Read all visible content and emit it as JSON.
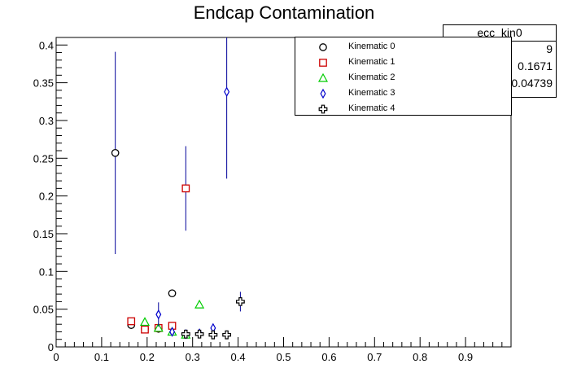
{
  "chart_data": {
    "type": "scatter",
    "title": "Endcap Contamination",
    "xlabel": "",
    "ylabel": "",
    "xlim": [
      0,
      1
    ],
    "ylim": [
      0,
      0.41
    ],
    "x_ticks": [
      "0",
      "0.1",
      "0.2",
      "0.3",
      "0.4",
      "0.5",
      "0.6",
      "0.7",
      "0.8",
      "0.9"
    ],
    "y_ticks": [
      "0",
      "0.05",
      "0.1",
      "0.15",
      "0.2",
      "0.25",
      "0.3",
      "0.35",
      "0.4"
    ],
    "grid": false,
    "legend_position": "top-right",
    "series": [
      {
        "name": "Kinematic 0",
        "marker": "circle",
        "color": "#000000",
        "points": [
          {
            "x": 0.13,
            "y": 0.257,
            "yerr": 0.134
          },
          {
            "x": 0.165,
            "y": 0.029,
            "yerr": 0
          },
          {
            "x": 0.195,
            "y": 0.024,
            "yerr": 0
          },
          {
            "x": 0.225,
            "y": 0.024,
            "yerr": 0
          },
          {
            "x": 0.255,
            "y": 0.071,
            "yerr": 0
          }
        ]
      },
      {
        "name": "Kinematic 1",
        "marker": "square",
        "color": "#cc0000",
        "points": [
          {
            "x": 0.165,
            "y": 0.034,
            "yerr": 0
          },
          {
            "x": 0.195,
            "y": 0.023,
            "yerr": 0
          },
          {
            "x": 0.225,
            "y": 0.025,
            "yerr": 0
          },
          {
            "x": 0.255,
            "y": 0.028,
            "yerr": 0
          },
          {
            "x": 0.285,
            "y": 0.21,
            "yerr": 0.056
          }
        ]
      },
      {
        "name": "Kinematic 2",
        "marker": "triangle",
        "color": "#00cc00",
        "points": [
          {
            "x": 0.195,
            "y": 0.033,
            "yerr": 0
          },
          {
            "x": 0.225,
            "y": 0.025,
            "yerr": 0
          },
          {
            "x": 0.255,
            "y": 0.02,
            "yerr": 0
          },
          {
            "x": 0.285,
            "y": 0.016,
            "yerr": 0
          },
          {
            "x": 0.315,
            "y": 0.056,
            "yerr": 0
          }
        ]
      },
      {
        "name": "Kinematic 3",
        "marker": "diamond",
        "color": "#0000cc",
        "points": [
          {
            "x": 0.225,
            "y": 0.043,
            "yerr": 0.016
          },
          {
            "x": 0.255,
            "y": 0.02,
            "yerr": 0
          },
          {
            "x": 0.285,
            "y": 0.017,
            "yerr": 0
          },
          {
            "x": 0.315,
            "y": 0.018,
            "yerr": 0
          },
          {
            "x": 0.345,
            "y": 0.025,
            "yerr": 0
          },
          {
            "x": 0.375,
            "y": 0.338,
            "yerr": 0.115
          }
        ]
      },
      {
        "name": "Kinematic 4",
        "marker": "cross",
        "color": "#000000",
        "points": [
          {
            "x": 0.285,
            "y": 0.017,
            "yerr": 0
          },
          {
            "x": 0.315,
            "y": 0.017,
            "yerr": 0
          },
          {
            "x": 0.345,
            "y": 0.016,
            "yerr": 0
          },
          {
            "x": 0.375,
            "y": 0.016,
            "yerr": 0
          },
          {
            "x": 0.405,
            "y": 0.06,
            "yerr": 0.013
          }
        ]
      }
    ]
  },
  "stats_box": {
    "title": "ecc_kin0",
    "values": [
      "9",
      "0.1671",
      "0.04739"
    ]
  },
  "colors": {
    "background": "#ffffff",
    "axis": "#000000",
    "errorbar": "#000099"
  }
}
